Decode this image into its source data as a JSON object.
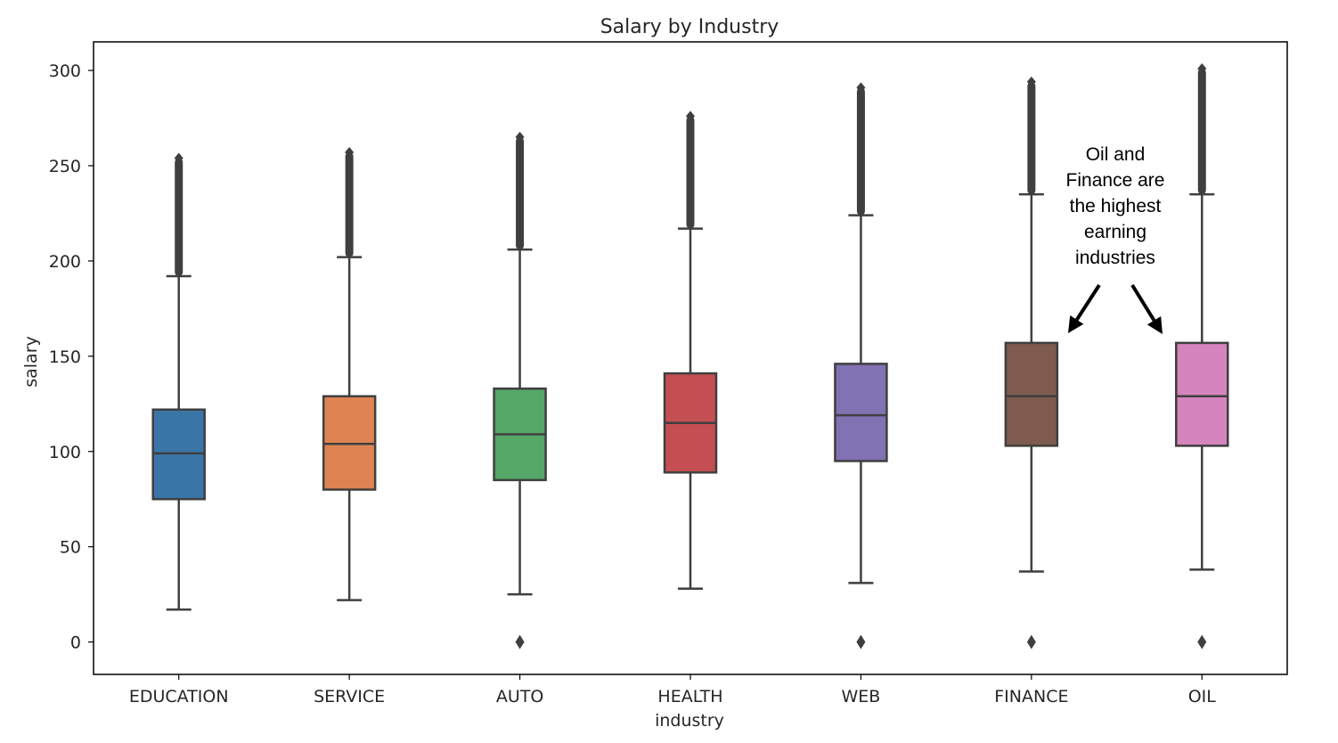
{
  "chart_data": {
    "type": "box",
    "title": "Salary by Industry",
    "xlabel": "industry",
    "ylabel": "salary",
    "ylim": [
      -17,
      315
    ],
    "yticks": [
      0,
      50,
      100,
      150,
      200,
      250,
      300
    ],
    "categories": [
      "EDUCATION",
      "SERVICE",
      "AUTO",
      "HEALTH",
      "WEB",
      "FINANCE",
      "OIL"
    ],
    "colors": [
      "#3a75a8",
      "#dd8452",
      "#55a868",
      "#c44e52",
      "#8172b3",
      "#7f5a4f",
      "#d684bd"
    ],
    "series": [
      {
        "category": "EDUCATION",
        "whisker_low": 17,
        "q1": 75,
        "median": 99,
        "q3": 122,
        "whisker_high": 192,
        "outliers_high": [
          192,
          254
        ],
        "outliers_low": []
      },
      {
        "category": "SERVICE",
        "whisker_low": 22,
        "q1": 80,
        "median": 104,
        "q3": 129,
        "whisker_high": 202,
        "outliers_high": [
          202,
          257
        ],
        "outliers_low": []
      },
      {
        "category": "AUTO",
        "whisker_low": 25,
        "q1": 85,
        "median": 109,
        "q3": 133,
        "whisker_high": 206,
        "outliers_high": [
          206,
          265
        ],
        "outliers_low": [
          0
        ]
      },
      {
        "category": "HEALTH",
        "whisker_low": 28,
        "q1": 89,
        "median": 115,
        "q3": 141,
        "whisker_high": 217,
        "outliers_high": [
          217,
          276
        ],
        "outliers_low": []
      },
      {
        "category": "WEB",
        "whisker_low": 31,
        "q1": 95,
        "median": 119,
        "q3": 146,
        "whisker_high": 224,
        "outliers_high": [
          224,
          291
        ],
        "outliers_low": [
          0
        ]
      },
      {
        "category": "FINANCE",
        "whisker_low": 37,
        "q1": 103,
        "median": 129,
        "q3": 157,
        "whisker_high": 235,
        "outliers_high": [
          235,
          294
        ],
        "outliers_low": [
          0
        ]
      },
      {
        "category": "OIL",
        "whisker_low": 38,
        "q1": 103,
        "median": 129,
        "q3": 157,
        "whisker_high": 235,
        "outliers_high": [
          235,
          301
        ],
        "outliers_low": [
          0
        ]
      }
    ],
    "annotation": {
      "lines": [
        "Oil and",
        "Finance are",
        "the highest",
        "earning",
        "industries"
      ]
    },
    "grid": false
  }
}
